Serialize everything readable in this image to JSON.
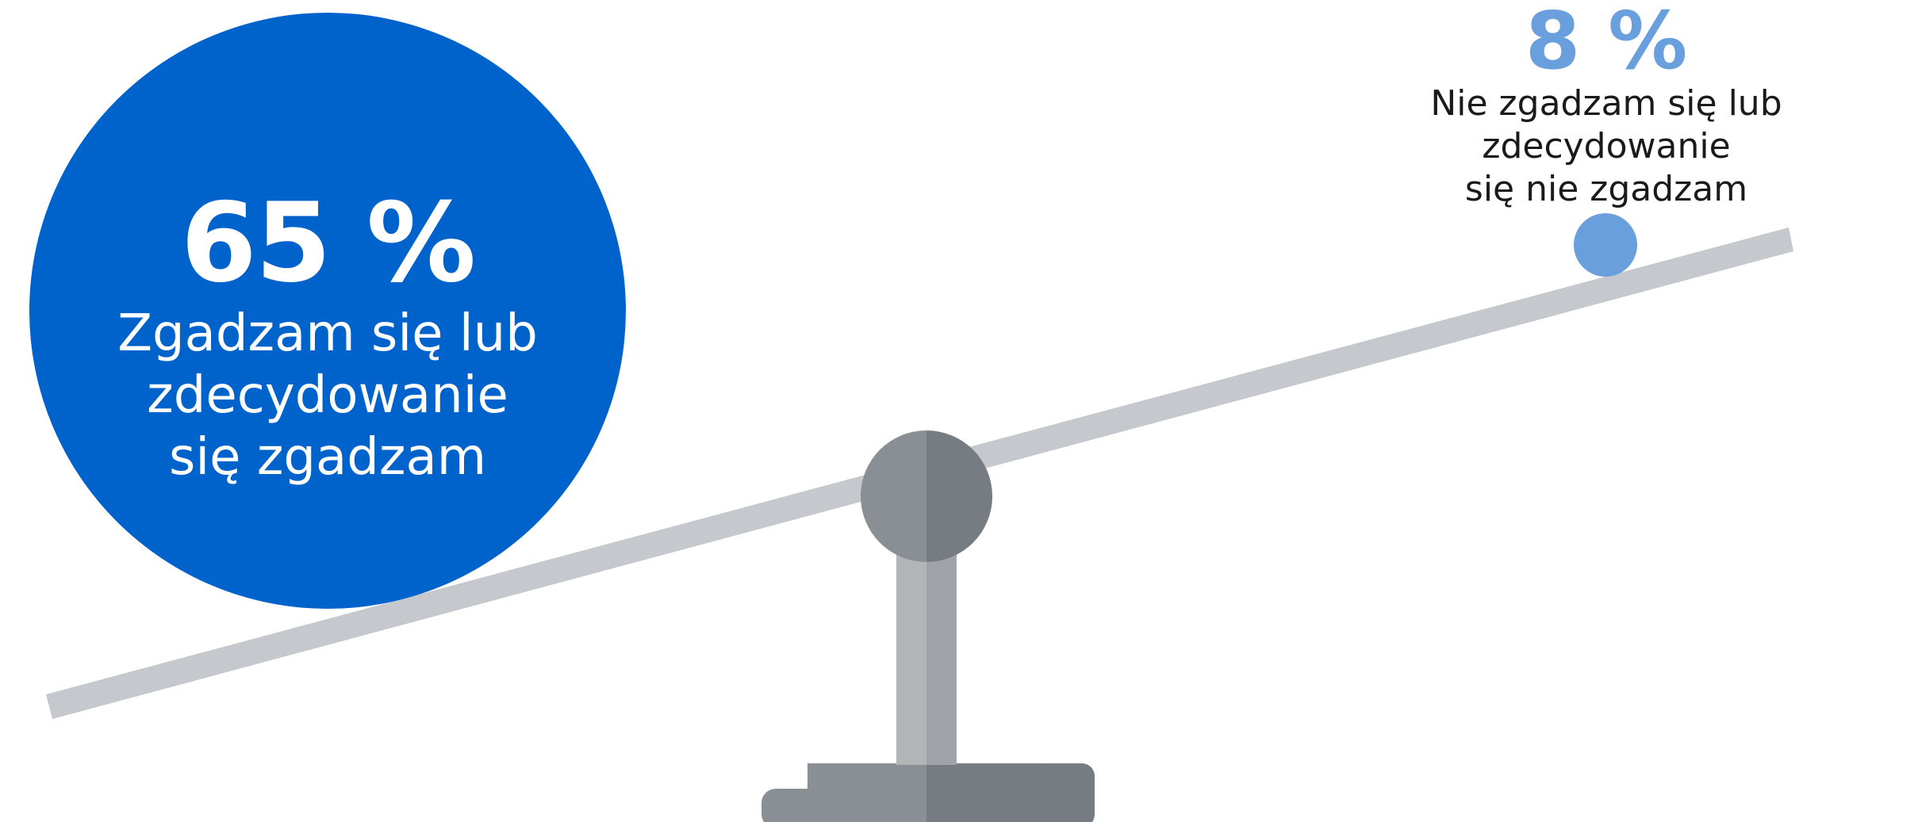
{
  "agree": {
    "value": "65 %",
    "label_lines": [
      "Zgadzam się lub",
      "zdecydowanie",
      "się zgadzam"
    ]
  },
  "disagree": {
    "value": "8 %",
    "label_lines": [
      "Nie zgadzam się lub zdecydowanie",
      "się nie zgadzam"
    ]
  },
  "colors": {
    "agree_circle": "#0063cc",
    "disagree_circle": "#6a9fde",
    "beam": "#c5c8cc",
    "pivot_light": "#8a8e95",
    "pivot_dark": "#777b82",
    "post_light": "#b2b4b8",
    "post_dark": "#a0a3a8"
  },
  "icons": {
    "scale": "seesaw-balance-icon"
  }
}
